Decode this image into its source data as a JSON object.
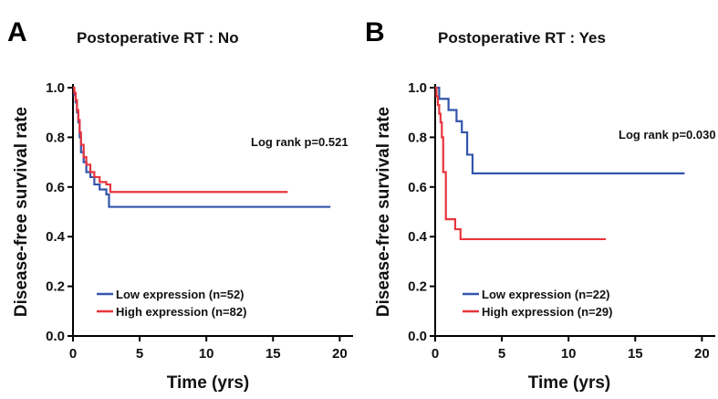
{
  "chart_data": [
    {
      "type": "line",
      "panel_label": "A",
      "title": "Postoperative RT : No",
      "xlabel": "Time (yrs)",
      "ylabel": "Disease-free survival rate",
      "xlim": [
        0,
        21
      ],
      "ylim": [
        0,
        1.0
      ],
      "xticks": [
        0,
        5,
        10,
        15,
        20
      ],
      "yticks": [
        0.0,
        0.2,
        0.4,
        0.6,
        0.8,
        1.0
      ],
      "xtick_labels": [
        "0",
        "5",
        "10",
        "15",
        "20"
      ],
      "ytick_labels": [
        "0.0",
        "0.2",
        "0.4",
        "0.6",
        "0.8",
        "1.0"
      ],
      "annotation": "Log rank p=0.521",
      "legend_position": "bottom-left",
      "series": [
        {
          "name": "Low expression (n=52)",
          "color": "#3355aa",
          "step": true,
          "x": [
            0,
            0.1,
            0.2,
            0.3,
            0.4,
            0.5,
            0.6,
            0.8,
            1.0,
            1.3,
            1.6,
            2.0,
            2.5,
            2.7,
            19.3
          ],
          "y": [
            1.0,
            0.97,
            0.94,
            0.9,
            0.86,
            0.8,
            0.74,
            0.7,
            0.66,
            0.64,
            0.61,
            0.59,
            0.57,
            0.52,
            0.52
          ]
        },
        {
          "name": "High expression (n=82)",
          "color": "#e8353d",
          "step": true,
          "x": [
            0,
            0.1,
            0.2,
            0.3,
            0.4,
            0.5,
            0.6,
            0.8,
            1.0,
            1.3,
            1.6,
            2.0,
            2.5,
            2.8,
            16.1
          ],
          "y": [
            1.0,
            0.98,
            0.95,
            0.91,
            0.87,
            0.82,
            0.77,
            0.72,
            0.69,
            0.66,
            0.64,
            0.62,
            0.61,
            0.58,
            0.58
          ]
        }
      ]
    },
    {
      "type": "line",
      "panel_label": "B",
      "title": "Postoperative RT : Yes",
      "xlabel": "Time (yrs)",
      "ylabel": "Disease-free survival rate",
      "xlim": [
        0,
        21
      ],
      "ylim": [
        0,
        1.0
      ],
      "xticks": [
        0,
        5,
        10,
        15,
        20
      ],
      "yticks": [
        0.0,
        0.2,
        0.4,
        0.6,
        0.8,
        1.0
      ],
      "xtick_labels": [
        "0",
        "5",
        "10",
        "15",
        "20"
      ],
      "ytick_labels": [
        "0.0",
        "0.2",
        "0.4",
        "0.6",
        "0.8",
        "1.0"
      ],
      "annotation": "Log rank p=0.030",
      "legend_position": "bottom-left",
      "series": [
        {
          "name": "Low expression (n=22)",
          "color": "#3355aa",
          "step": true,
          "x": [
            0,
            0.3,
            1.0,
            1.6,
            2.0,
            2.4,
            2.8,
            18.7
          ],
          "y": [
            1.0,
            0.955,
            0.91,
            0.865,
            0.82,
            0.73,
            0.655,
            0.655
          ]
        },
        {
          "name": "High expression (n=29)",
          "color": "#e8353d",
          "step": true,
          "x": [
            0,
            0.1,
            0.2,
            0.3,
            0.4,
            0.5,
            0.6,
            0.8,
            1.5,
            1.9,
            12.8
          ],
          "y": [
            1.0,
            0.965,
            0.93,
            0.895,
            0.86,
            0.8,
            0.66,
            0.47,
            0.43,
            0.39,
            0.39
          ]
        }
      ]
    }
  ]
}
